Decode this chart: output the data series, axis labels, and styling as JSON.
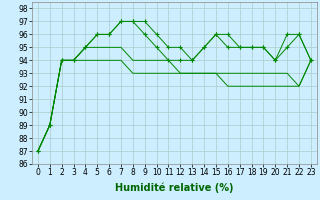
{
  "xlabel": "Humidité relative (%)",
  "bg_color": "#cceeff",
  "grid_color": "#aacccc",
  "line_color": "#008800",
  "marker_color": "#008800",
  "x": [
    0,
    1,
    2,
    3,
    4,
    5,
    6,
    7,
    8,
    9,
    10,
    11,
    12,
    13,
    14,
    15,
    16,
    17,
    18,
    19,
    20,
    21,
    22,
    23
  ],
  "series_marked": [
    [
      87,
      89,
      94,
      94,
      95,
      96,
      96,
      97,
      97,
      97,
      96,
      95,
      95,
      94,
      95,
      96,
      95,
      95,
      95,
      95,
      94,
      95,
      96,
      94
    ],
    [
      87,
      89,
      94,
      94,
      95,
      96,
      96,
      97,
      97,
      96,
      95,
      94,
      94,
      94,
      95,
      96,
      96,
      95,
      95,
      95,
      94,
      96,
      96,
      94
    ]
  ],
  "series_plain": [
    [
      87,
      89,
      94,
      94,
      95,
      95,
      95,
      95,
      94,
      94,
      94,
      94,
      93,
      93,
      93,
      93,
      93,
      93,
      93,
      93,
      93,
      93,
      92,
      94
    ],
    [
      87,
      89,
      94,
      94,
      94,
      94,
      94,
      94,
      93,
      93,
      93,
      93,
      93,
      93,
      93,
      93,
      92,
      92,
      92,
      92,
      92,
      92,
      92,
      94
    ]
  ],
  "ylim": [
    86,
    98.5
  ],
  "xlim": [
    -0.5,
    23.5
  ],
  "yticks": [
    86,
    87,
    88,
    89,
    90,
    91,
    92,
    93,
    94,
    95,
    96,
    97,
    98
  ],
  "xticks": [
    0,
    1,
    2,
    3,
    4,
    5,
    6,
    7,
    8,
    9,
    10,
    11,
    12,
    13,
    14,
    15,
    16,
    17,
    18,
    19,
    20,
    21,
    22,
    23
  ],
  "xlabel_fontsize": 7,
  "tick_fontsize": 5.5,
  "xlabel_color": "#006600",
  "tick_color": "#000000"
}
